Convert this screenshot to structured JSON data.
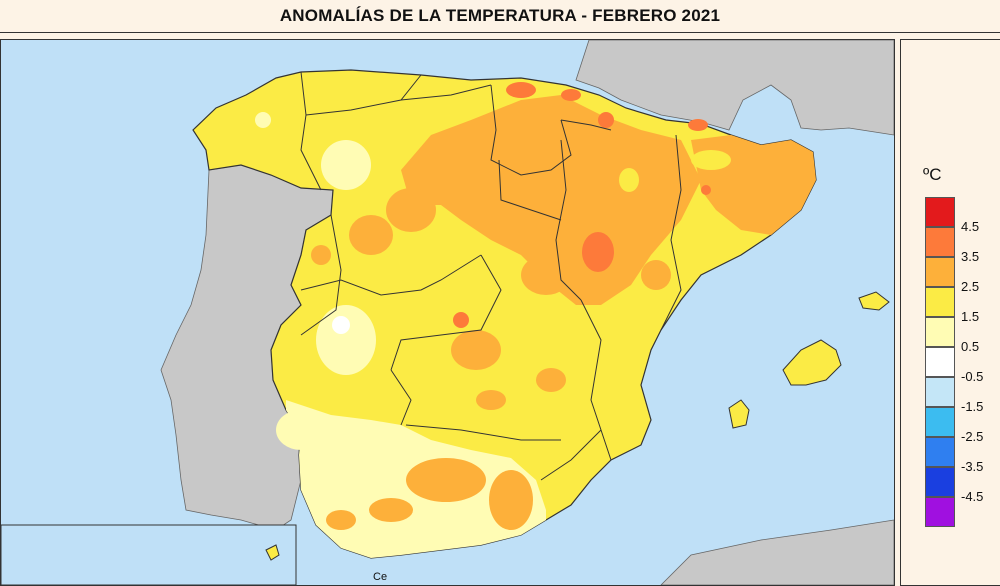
{
  "title": "ANOMALÍAS DE LA TEMPERATURA - FEBRERO 2021",
  "legend": {
    "unit": "ºC",
    "classes": [
      {
        "label": "4.5",
        "color": "#e31a1c"
      },
      {
        "label": "3.5",
        "color": "#fd7a3a"
      },
      {
        "label": "2.5",
        "color": "#fdb03a"
      },
      {
        "label": "1.5",
        "color": "#fbeb45"
      },
      {
        "label": "0.5",
        "color": "#fffcb4"
      },
      {
        "label": "-0.5",
        "color": "#ffffff"
      },
      {
        "label": "-1.5",
        "color": "#c4e6f7"
      },
      {
        "label": "-2.5",
        "color": "#3cbcf0"
      },
      {
        "label": "-3.5",
        "color": "#2f7ff0"
      },
      {
        "label": "-4.5",
        "color": "#1a3fe0"
      },
      {
        "label": "",
        "color": "#a010e0"
      }
    ]
  },
  "map": {
    "sea_color": "#bfe0f7",
    "foreign_land_color": "#c8c8c8",
    "label_ceuta": "Ce"
  }
}
